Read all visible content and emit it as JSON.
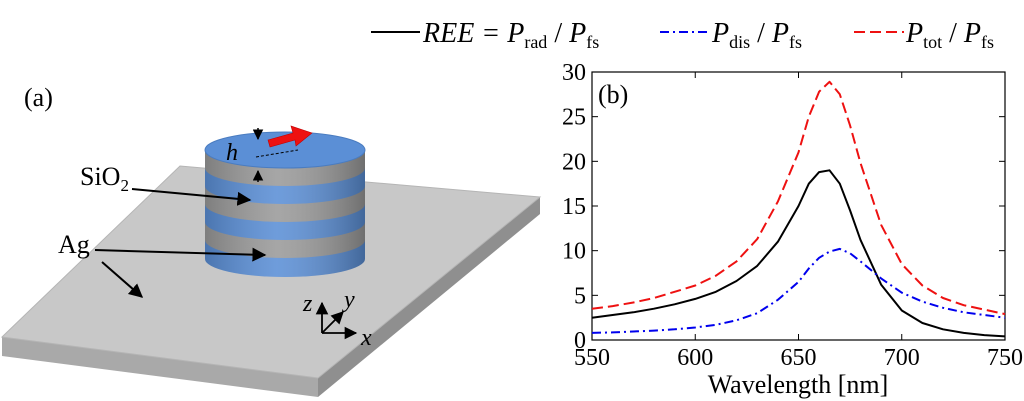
{
  "legend": [
    {
      "key": "ree",
      "pre": "REE = ",
      "sym1": "P",
      "sub1": "rad",
      "sym2": "P",
      "sub2": "fs",
      "color": "#000000",
      "dash": "solid"
    },
    {
      "key": "dis",
      "pre": "",
      "sym1": "P",
      "sub1": "dis",
      "sym2": "P",
      "sub2": "fs",
      "color": "#0000ee",
      "dash": "dashdot"
    },
    {
      "key": "tot",
      "pre": "",
      "sym1": "P",
      "sub1": "tot",
      "sym2": "P",
      "sub2": "fs",
      "color": "#ee1111",
      "dash": "dashed"
    }
  ],
  "diagram": {
    "panel_label": "(a)",
    "labels": {
      "sio2_main": "SiO",
      "sio2_sub": "2",
      "ag": "Ag",
      "h": "h"
    },
    "axes": {
      "z": "z",
      "y": "y",
      "x": "x"
    },
    "colors": {
      "ag": "#5b8fd6",
      "sio2": "#9a9a9a",
      "substrate": "#c8c8c8",
      "arrow": "#ee1111"
    }
  },
  "chart_data": {
    "type": "line",
    "panel_label": "(b)",
    "xlabel": "Wavelength [nm]",
    "ylabel": "",
    "xlim": [
      550,
      750
    ],
    "ylim": [
      0,
      30
    ],
    "xticks": [
      550,
      600,
      650,
      700,
      750
    ],
    "yticks": [
      0,
      5,
      10,
      15,
      20,
      25,
      30
    ],
    "grid": false,
    "legend_position": "top",
    "x": [
      550,
      560,
      570,
      580,
      590,
      600,
      610,
      620,
      630,
      640,
      650,
      655,
      660,
      665,
      670,
      675,
      680,
      690,
      700,
      710,
      720,
      730,
      740,
      750
    ],
    "series": [
      {
        "name": "REE = Prad / Pfs",
        "color": "#000000",
        "values": [
          2.5,
          2.8,
          3.1,
          3.5,
          4.0,
          4.6,
          5.4,
          6.6,
          8.3,
          11.0,
          15.0,
          17.5,
          18.8,
          19.0,
          17.5,
          14.5,
          11.2,
          6.2,
          3.3,
          1.9,
          1.2,
          0.8,
          0.55,
          0.4
        ]
      },
      {
        "name": "Pdis / Pfs",
        "color": "#0000ee",
        "values": [
          0.8,
          0.85,
          0.95,
          1.05,
          1.2,
          1.4,
          1.7,
          2.2,
          3.0,
          4.5,
          6.5,
          8.0,
          9.2,
          9.9,
          10.2,
          9.7,
          8.8,
          6.9,
          5.3,
          4.3,
          3.6,
          3.1,
          2.8,
          2.5
        ]
      },
      {
        "name": "Ptot / Pfs",
        "color": "#ee1111",
        "values": [
          3.5,
          3.8,
          4.2,
          4.7,
          5.4,
          6.1,
          7.2,
          8.8,
          11.3,
          15.5,
          21.0,
          25.0,
          27.8,
          28.9,
          27.5,
          24.0,
          19.8,
          12.9,
          8.5,
          6.1,
          4.7,
          3.9,
          3.4,
          2.9
        ]
      }
    ]
  }
}
